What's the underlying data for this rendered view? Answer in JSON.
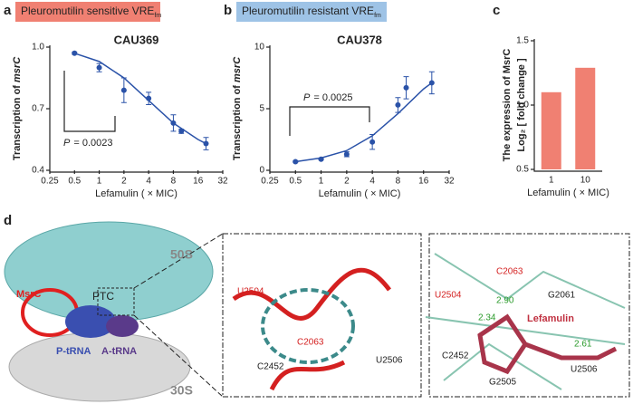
{
  "panels": [
    "a",
    "b",
    "c",
    "d"
  ],
  "chart_data": [
    {
      "type": "scatter",
      "title": "CAU369",
      "subtitle": "Pleuromutilin sensitive VRE",
      "subtitle_sub": "fm",
      "banner_color": "#f08072",
      "xlabel": "Lefamulin ( × MIC)",
      "ylabel": "Transcription of ",
      "ylabel_italic": "msrC",
      "xscale": "log",
      "log_base": 2,
      "xlim": [
        0.25,
        32
      ],
      "xticks": [
        0.25,
        0.5,
        1,
        2,
        4,
        8,
        16,
        32
      ],
      "ylim": [
        0.4,
        1.0
      ],
      "yticks": [
        0.4,
        0.7,
        {
          "value": 1,
          "label": "1.0"
        }
      ],
      "color": "#2a52a8",
      "x": [
        0.5,
        1,
        2,
        4,
        8,
        10,
        20
      ],
      "values": [
        0.97,
        0.9,
        0.79,
        0.75,
        0.63,
        0.59,
        0.53
      ],
      "errors": [
        0.005,
        0.02,
        0.06,
        0.03,
        0.04,
        0.01,
        0.03
      ],
      "fit": {
        "x": [
          0.5,
          1,
          2,
          4,
          8,
          16,
          20
        ],
        "y": [
          0.97,
          0.93,
          0.85,
          0.74,
          0.63,
          0.55,
          0.53
        ]
      },
      "annotation": {
        "italic": "P",
        "text": "= 0.0023"
      }
    },
    {
      "type": "scatter",
      "title": "CAU378",
      "subtitle": "Pleuromutilin resistant VRE",
      "subtitle_sub": "fm",
      "banner_color": "#9ec3e6",
      "xlabel": "Lefamulin ( × MIC)",
      "ylabel": "Transcription of ",
      "ylabel_italic": "msrC",
      "xscale": "log",
      "log_base": 2,
      "xlim": [
        0.25,
        32
      ],
      "xticks": [
        0.25,
        0.5,
        1,
        2,
        4,
        8,
        16,
        32
      ],
      "ylim": [
        0,
        10
      ],
      "yticks": [
        0,
        5,
        10
      ],
      "color": "#2a52a8",
      "x": [
        0.5,
        1,
        2,
        4,
        8,
        10,
        20
      ],
      "values": [
        0.7,
        0.9,
        1.3,
        2.3,
        5.3,
        6.7,
        7.1
      ],
      "errors": [
        0.05,
        0.05,
        0.2,
        0.6,
        0.6,
        0.9,
        0.9
      ],
      "fit": {
        "x": [
          0.5,
          1,
          2,
          4,
          8,
          16,
          20
        ],
        "y": [
          0.7,
          1.0,
          1.6,
          2.8,
          4.6,
          6.6,
          7.1
        ]
      },
      "annotation": {
        "italic": "P",
        "text": "= 0.0025"
      }
    },
    {
      "type": "bar",
      "xlabel": "Lefamulin ( × MIC)",
      "ylabel": [
        "The expression of MsrC",
        "Log₂ [ fold change ]"
      ],
      "categories": [
        "1",
        "10"
      ],
      "values": [
        1.1,
        1.29
      ],
      "color": "#f08072",
      "ylim": [
        0.5,
        1.5
      ],
      "yticks": [
        0.5,
        {
          "value": 1,
          "label": "1.0"
        },
        1.5
      ]
    }
  ],
  "structure": {
    "overview": [
      "50S",
      "30S",
      "MsrC",
      "PTC",
      "P-tRNA",
      "A-tRNA"
    ],
    "middle": [
      "U2504",
      "C2063",
      "C2452",
      "U2506"
    ],
    "right": [
      "U2504",
      "C2063",
      "2.90",
      "2.34",
      "G2061",
      "Lefamulin",
      "2.61",
      "C2452",
      "G2505",
      "U2506"
    ]
  }
}
